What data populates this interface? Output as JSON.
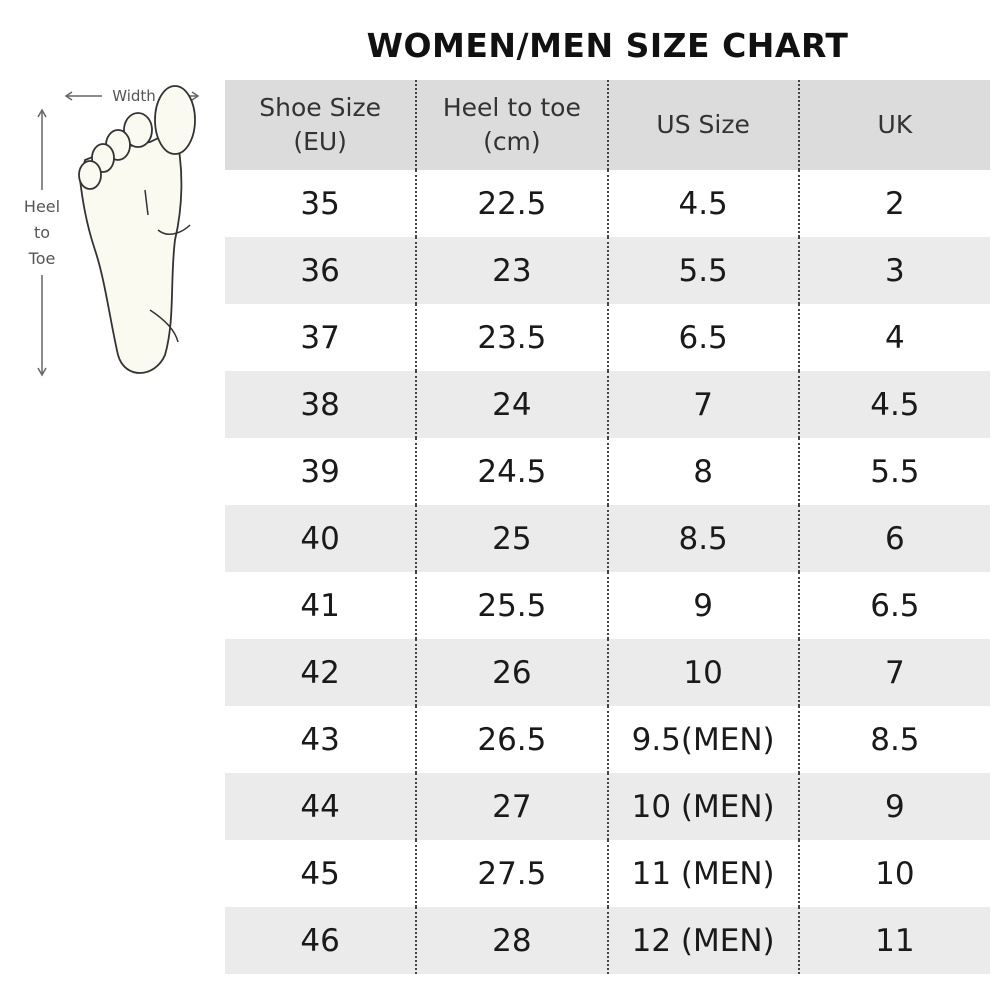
{
  "title": "WOMEN/MEN SIZE CHART",
  "diagram": {
    "width_label": "Width",
    "length_label_lines": [
      "Heel",
      "to",
      "Toe"
    ]
  },
  "table": {
    "headers": [
      [
        "Shoe Size",
        "(EU)"
      ],
      [
        "Heel to toe",
        "(cm)"
      ],
      [
        "US Size"
      ],
      [
        "UK"
      ]
    ],
    "rows": [
      [
        "35",
        "22.5",
        "4.5",
        "2"
      ],
      [
        "36",
        "23",
        "5.5",
        "3"
      ],
      [
        "37",
        "23.5",
        "6.5",
        "4"
      ],
      [
        "38",
        "24",
        "7",
        "4.5"
      ],
      [
        "39",
        "24.5",
        "8",
        "5.5"
      ],
      [
        "40",
        "25",
        "8.5",
        "6"
      ],
      [
        "41",
        "25.5",
        "9",
        "6.5"
      ],
      [
        "42",
        "26",
        "10",
        "7"
      ],
      [
        "43",
        "26.5",
        "9.5(MEN)",
        "8.5"
      ],
      [
        "44",
        "27",
        "10 (MEN)",
        "9"
      ],
      [
        "45",
        "27.5",
        "11 (MEN)",
        "10"
      ],
      [
        "46",
        "28",
        "12 (MEN)",
        "11"
      ]
    ]
  },
  "colors": {
    "header_bg": "#dcdcdc",
    "stripe_bg": "#ebebeb",
    "foot_fill": "#fafaf0"
  }
}
